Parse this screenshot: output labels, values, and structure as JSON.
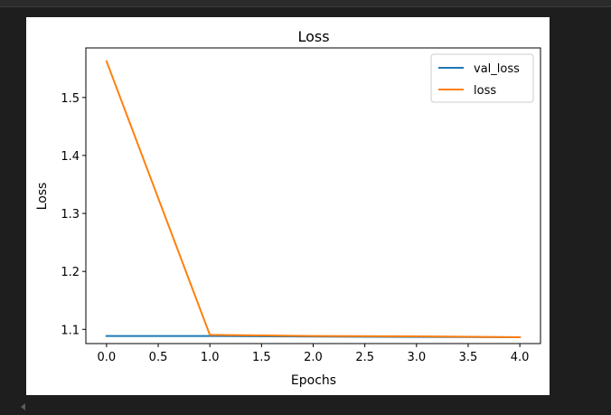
{
  "chart_data": {
    "type": "line",
    "title": "Loss",
    "xlabel": "Epochs",
    "ylabel": "Loss",
    "x": [
      0,
      1,
      2,
      3,
      4
    ],
    "xlim": [
      -0.2,
      4.2
    ],
    "ylim": [
      1.0755,
      1.5855
    ],
    "xticks": [
      0.0,
      0.5,
      1.0,
      1.5,
      2.0,
      2.5,
      3.0,
      3.5,
      4.0
    ],
    "xtick_labels": [
      "0.0",
      "0.5",
      "1.0",
      "1.5",
      "2.0",
      "2.5",
      "3.0",
      "3.5",
      "4.0"
    ],
    "yticks": [
      1.1,
      1.2,
      1.3,
      1.4,
      1.5
    ],
    "ytick_labels": [
      "1.1",
      "1.2",
      "1.3",
      "1.4",
      "1.5"
    ],
    "grid": false,
    "legend_position": "top-right",
    "series": [
      {
        "name": "val_loss",
        "color": "#1f77b4",
        "values": [
          1.0885,
          1.0885,
          1.0875,
          1.087,
          1.0865
        ]
      },
      {
        "name": "loss",
        "color": "#ff7f0e",
        "values": [
          1.5625,
          1.0905,
          1.0885,
          1.088,
          1.0865
        ]
      }
    ]
  }
}
